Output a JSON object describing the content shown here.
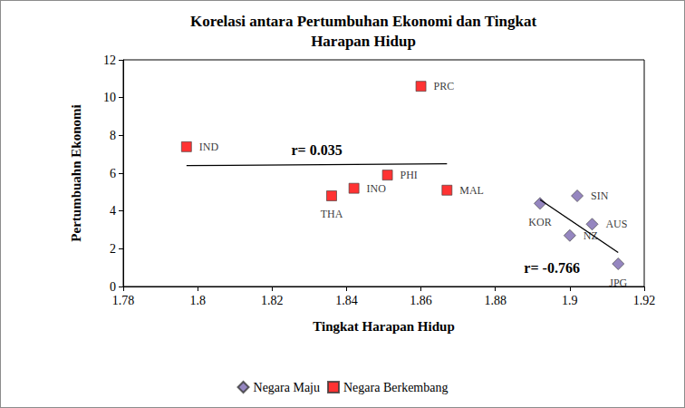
{
  "chart_data": {
    "type": "scatter",
    "title": "Korelasi antara Pertumbuhan Ekonomi dan Tingkat\nHarapan Hidup",
    "x_label": "Tingkat Harapan Hidup",
    "y_label": "Pertumbuahn Ekonomi",
    "xlim": [
      1.78,
      1.92
    ],
    "xticks": [
      1.78,
      1.8,
      1.82,
      1.84,
      1.86,
      1.88,
      1.9,
      1.92
    ],
    "ylim": [
      0,
      12
    ],
    "yticks": [
      0,
      2,
      4,
      6,
      8,
      10,
      12
    ],
    "grid": false,
    "legend": "bottom",
    "series": [
      {
        "name": "Negara Maju",
        "color": "#7b68b0",
        "marker": "diamond",
        "x": [
          1.892,
          1.902,
          1.906,
          1.9,
          1.913
        ],
        "values": [
          4.4,
          4.8,
          3.3,
          2.7,
          1.2
        ],
        "labels": [
          "KOR",
          "SIN",
          "AUS",
          "NZ",
          "JPG"
        ],
        "trendline": {
          "x": [
            1.892,
            1.913
          ],
          "values": [
            4.6,
            1.8
          ],
          "label": "r= -0.766"
        }
      },
      {
        "name": "Negara Berkembang",
        "color": "#ff0000",
        "marker": "square",
        "x": [
          1.797,
          1.86,
          1.851,
          1.842,
          1.836,
          1.867
        ],
        "values": [
          7.4,
          10.6,
          5.9,
          5.2,
          4.8,
          5.1
        ],
        "labels": [
          "IND",
          "PRC",
          "PHI",
          "INO",
          "THA",
          "MAL"
        ],
        "trendline": {
          "x": [
            1.797,
            1.867
          ],
          "values": [
            6.4,
            6.5
          ],
          "label": "r= 0.035"
        }
      }
    ]
  }
}
